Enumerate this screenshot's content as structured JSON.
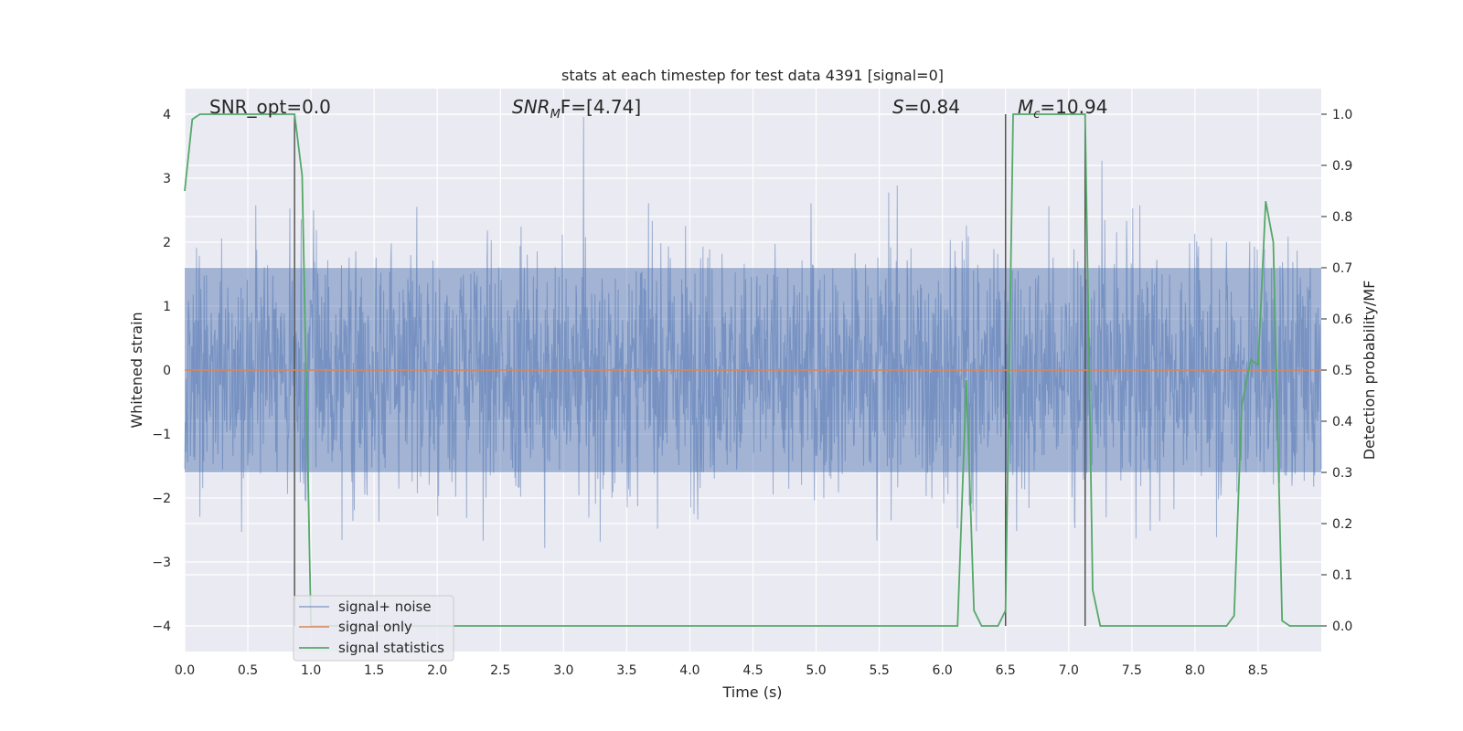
{
  "chart_data": {
    "type": "line",
    "title": "stats at each timestep for test data 4391 [signal=0]",
    "xlabel": "Time (s)",
    "ylabel": "Whitened strain",
    "y2label": "Detection probability/MF",
    "xlim": [
      0,
      9
    ],
    "ylim": [
      -4.4,
      4.4
    ],
    "y2lim": [
      -0.05,
      1.05
    ],
    "xticks": [
      "0.0",
      "0.5",
      "1.0",
      "1.5",
      "2.0",
      "2.5",
      "3.0",
      "3.5",
      "4.0",
      "4.5",
      "5.0",
      "5.5",
      "6.0",
      "6.5",
      "7.0",
      "7.5",
      "8.0",
      "8.5"
    ],
    "yticks": [
      "4",
      "3",
      "2",
      "1",
      "0",
      "−1",
      "−2",
      "−3",
      "−4"
    ],
    "y2ticks": [
      "1.0",
      "0.9",
      "0.8",
      "0.7",
      "0.6",
      "0.5",
      "0.4",
      "0.3",
      "0.2",
      "0.1",
      "0.0"
    ],
    "grid": true,
    "legend_placement": "bottom-left",
    "annotations": {
      "snr_opt": "SNR_opt=0.0",
      "snr_mf_symbol": "SNR",
      "snr_mf_sub": "M",
      "snr_mf_rest": "F=[4.74]",
      "s_symbol": "S",
      "s_rest": "=0.84",
      "mc_symbol": "M",
      "mc_sub": "c",
      "mc_rest": "=10.94"
    },
    "vertical_markers_x": [
      0.87,
      6.5,
      7.13
    ],
    "series": [
      {
        "name": "signal+ noise",
        "color": "#4c72b0",
        "axis": "left",
        "description_amplitude": "whitened noise, mostly within ±2.5, peaks near ±4"
      },
      {
        "name": "signal only",
        "color": "#dd8452",
        "axis": "left",
        "x": [
          0,
          9
        ],
        "y": [
          0,
          0
        ]
      },
      {
        "name": "signal statistics",
        "color": "#55a868",
        "axis": "right",
        "x": [
          0,
          0.06,
          0.12,
          0.5,
          0.87,
          0.93,
          1.0,
          1.5,
          2.0,
          3.0,
          4.0,
          5.0,
          6.0,
          6.12,
          6.19,
          6.25,
          6.31,
          6.38,
          6.44,
          6.5,
          6.56,
          6.62,
          7.0,
          7.13,
          7.19,
          7.25,
          7.5,
          7.75,
          8.0,
          8.25,
          8.31,
          8.37,
          8.44,
          8.5,
          8.56,
          8.62,
          8.69,
          8.75,
          9.0
        ],
        "y": [
          0.85,
          0.99,
          1.0,
          1.0,
          1.0,
          0.88,
          0.0,
          0.0,
          0.0,
          0.0,
          0.0,
          0.0,
          0.0,
          0.0,
          0.48,
          0.03,
          0.0,
          0.0,
          0.0,
          0.03,
          1.0,
          1.0,
          1.0,
          1.0,
          0.07,
          0.0,
          0.0,
          0.0,
          0.0,
          0.0,
          0.02,
          0.43,
          0.52,
          0.51,
          0.83,
          0.75,
          0.01,
          0.0,
          0.0
        ]
      }
    ]
  }
}
